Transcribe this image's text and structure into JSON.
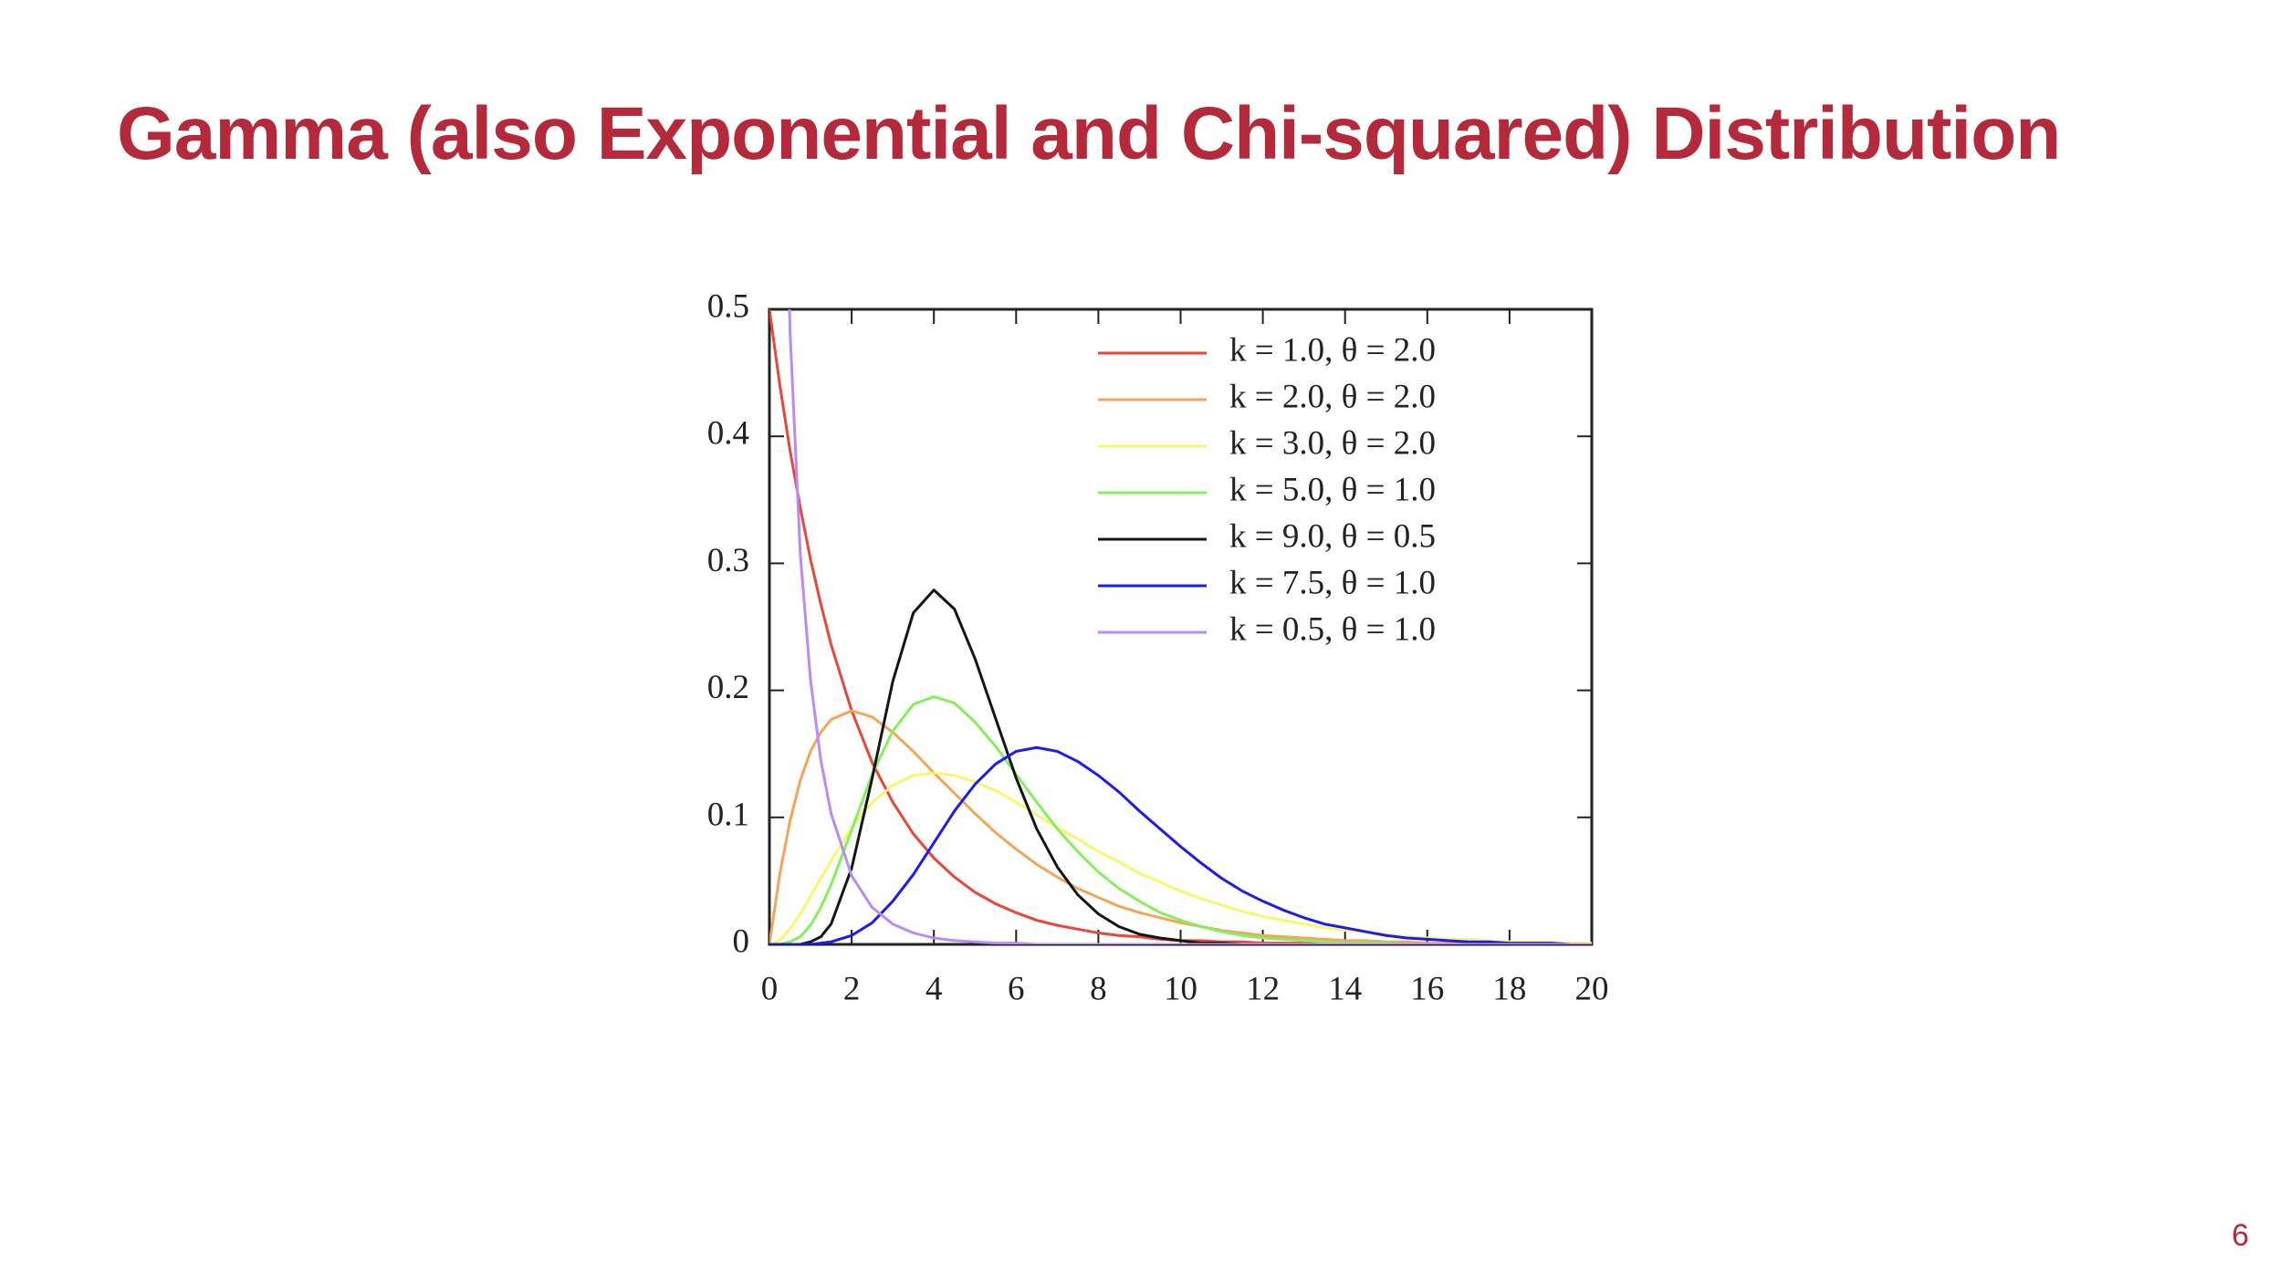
{
  "title": "Gamma (also Exponential and Chi-squared) Distribution",
  "page_number": 6,
  "chart_data": {
    "type": "line",
    "x": [
      0,
      0.25,
      0.5,
      0.75,
      1,
      1.25,
      1.5,
      2,
      2.5,
      3,
      3.5,
      4,
      4.5,
      5,
      5.5,
      6,
      6.5,
      7,
      7.5,
      8,
      8.5,
      9,
      9.5,
      10,
      10.5,
      11,
      11.5,
      12,
      12.5,
      13,
      13.5,
      14,
      14.5,
      15,
      15.5,
      16,
      16.5,
      17,
      17.5,
      18,
      18.5,
      19,
      19.5,
      20
    ],
    "series": [
      {
        "name": "k = 1.0, θ = 2.0",
        "color": "#e8473a",
        "values": [
          0.5,
          0.441,
          0.389,
          0.344,
          0.303,
          0.268,
          0.236,
          0.184,
          0.143,
          0.112,
          0.087,
          0.068,
          0.053,
          0.041,
          0.032,
          0.025,
          0.019,
          0.015,
          0.012,
          0.009,
          0.007,
          0.006,
          0.004,
          0.003,
          0.003,
          0.002,
          0.002,
          0.001,
          0.001,
          0.001,
          0.001,
          0,
          0,
          0,
          0,
          0,
          0,
          0,
          0,
          0,
          0,
          0,
          0,
          0
        ]
      },
      {
        "name": "k = 2.0, θ = 2.0",
        "color": "#f3a65a",
        "values": [
          0,
          0.055,
          0.097,
          0.129,
          0.152,
          0.167,
          0.177,
          0.184,
          0.179,
          0.167,
          0.152,
          0.135,
          0.119,
          0.103,
          0.088,
          0.075,
          0.063,
          0.053,
          0.044,
          0.037,
          0.03,
          0.025,
          0.021,
          0.017,
          0.014,
          0.011,
          0.009,
          0.007,
          0.006,
          0.005,
          0.004,
          0.003,
          0.003,
          0.002,
          0.002,
          0.001,
          0.001,
          0.001,
          0.001,
          0.001,
          0,
          0,
          0,
          0
        ]
      },
      {
        "name": "k = 3.0, θ = 2.0",
        "color": "#f8f870",
        "values": [
          0,
          0.003,
          0.012,
          0.024,
          0.038,
          0.052,
          0.066,
          0.092,
          0.112,
          0.125,
          0.133,
          0.135,
          0.133,
          0.128,
          0.121,
          0.112,
          0.102,
          0.092,
          0.083,
          0.073,
          0.065,
          0.056,
          0.049,
          0.042,
          0.036,
          0.031,
          0.026,
          0.022,
          0.019,
          0.016,
          0.013,
          0.011,
          0.009,
          0.008,
          0.006,
          0.005,
          0.004,
          0.004,
          0.003,
          0.002,
          0.002,
          0.002,
          0.001,
          0.001
        ]
      },
      {
        "name": "k = 5.0, θ = 1.0",
        "color": "#86ef5e",
        "values": [
          0,
          0,
          0.002,
          0.006,
          0.015,
          0.029,
          0.047,
          0.09,
          0.134,
          0.168,
          0.189,
          0.195,
          0.19,
          0.175,
          0.156,
          0.134,
          0.112,
          0.091,
          0.073,
          0.057,
          0.044,
          0.034,
          0.025,
          0.019,
          0.014,
          0.01,
          0.007,
          0.005,
          0.004,
          0.003,
          0.002,
          0.001,
          0.001,
          0.001,
          0,
          0,
          0,
          0,
          0,
          0,
          0,
          0,
          0,
          0
        ]
      },
      {
        "name": "k = 9.0, θ = 0.5",
        "color": "#151515",
        "values": [
          0,
          0,
          0,
          0,
          0.002,
          0.006,
          0.016,
          0.06,
          0.131,
          0.207,
          0.261,
          0.279,
          0.264,
          0.225,
          0.178,
          0.131,
          0.091,
          0.061,
          0.039,
          0.024,
          0.014,
          0.008,
          0.005,
          0.003,
          0.001,
          0.001,
          0,
          0,
          0,
          0,
          0,
          0,
          0,
          0,
          0,
          0,
          0,
          0,
          0,
          0,
          0,
          0,
          0,
          0
        ]
      },
      {
        "name": "k = 7.5, θ = 1.0",
        "color": "#1c1cf0",
        "values": [
          0,
          0,
          0,
          0,
          0,
          0.001,
          0.002,
          0.007,
          0.017,
          0.034,
          0.055,
          0.08,
          0.105,
          0.126,
          0.142,
          0.152,
          0.155,
          0.152,
          0.144,
          0.133,
          0.12,
          0.105,
          0.091,
          0.077,
          0.064,
          0.052,
          0.042,
          0.034,
          0.027,
          0.021,
          0.016,
          0.013,
          0.01,
          0.007,
          0.005,
          0.004,
          0.003,
          0.002,
          0.002,
          0.001,
          0.001,
          0.001,
          0,
          0
        ]
      },
      {
        "name": "k = 0.5, θ = 1.0",
        "color": "#b88cf3",
        "values": [
          null,
          0.879,
          0.484,
          0.308,
          0.208,
          0.145,
          0.103,
          0.054,
          0.029,
          0.016,
          0.009,
          0.005,
          0.003,
          0.002,
          0.001,
          0.001,
          0,
          0,
          0,
          0,
          0,
          0,
          0,
          0,
          0,
          0,
          0,
          0,
          0,
          0,
          0,
          0,
          0,
          0,
          0,
          0,
          0,
          0,
          0,
          0,
          0,
          0,
          0,
          0
        ]
      }
    ],
    "xlim": [
      0,
      20
    ],
    "xticks": [
      0,
      2,
      4,
      6,
      8,
      10,
      12,
      14,
      16,
      18,
      20
    ],
    "ylim": [
      0,
      0.5
    ],
    "yticks": [
      0,
      0.1,
      0.2,
      0.3,
      0.4,
      0.5
    ],
    "legend": "upper right",
    "grid": false
  }
}
